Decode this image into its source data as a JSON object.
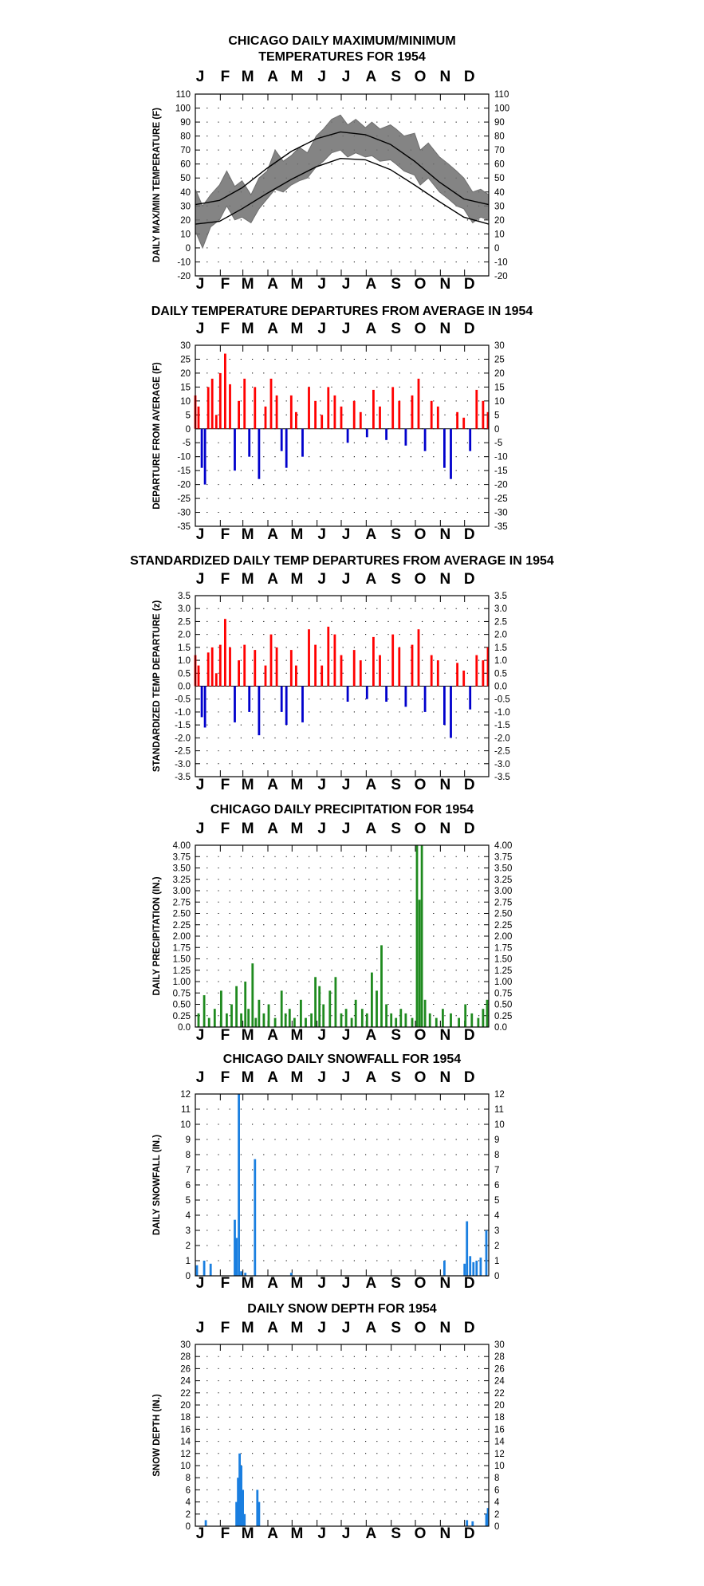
{
  "months": [
    "J",
    "F",
    "M",
    "A",
    "M",
    "J",
    "J",
    "A",
    "S",
    "O",
    "N",
    "D"
  ],
  "colors": {
    "max_series": "#6e6e6e",
    "normal_lines": "#000000",
    "positive": "#ff0000",
    "negative": "#0000cc",
    "precipitation": "#1f8a1f",
    "snow": "#1a7fe0"
  },
  "chart_data": [
    {
      "type": "line",
      "title": "CHICAGO DAILY MAXIMUM/MINIMUM\nTEMPERATURES FOR 1954",
      "ylabel": "DAILY MAX/MIN TEMPERATURE (F)",
      "ylim": [
        -20,
        110
      ],
      "yticks": [
        "110",
        "100",
        "90",
        "80",
        "70",
        "60",
        "50",
        "40",
        "30",
        "20",
        "10",
        "0",
        "-10",
        "-20"
      ],
      "grid": true,
      "x_day_range": [
        1,
        365
      ],
      "series": [
        {
          "role": "daily observed max/min band",
          "x": [
            1,
            10,
            20,
            31,
            40,
            50,
            59,
            70,
            80,
            90,
            100,
            110,
            120,
            130,
            140,
            151,
            160,
            170,
            181,
            190,
            200,
            212,
            220,
            230,
            243,
            250,
            260,
            273,
            280,
            290,
            304,
            315,
            325,
            334,
            345,
            355,
            365
          ],
          "high": [
            42,
            30,
            38,
            45,
            55,
            44,
            48,
            38,
            50,
            55,
            70,
            62,
            66,
            72,
            68,
            80,
            85,
            92,
            95,
            88,
            92,
            86,
            90,
            85,
            88,
            85,
            80,
            82,
            70,
            75,
            65,
            60,
            55,
            50,
            40,
            42,
            38
          ],
          "low": [
            12,
            0,
            15,
            20,
            30,
            20,
            22,
            18,
            28,
            35,
            42,
            40,
            45,
            48,
            50,
            58,
            62,
            68,
            70,
            65,
            68,
            65,
            66,
            62,
            63,
            60,
            55,
            52,
            45,
            50,
            40,
            35,
            30,
            28,
            18,
            22,
            20
          ]
        },
        {
          "role": "normal max",
          "x": [
            1,
            31,
            59,
            90,
            120,
            151,
            181,
            212,
            243,
            273,
            304,
            334,
            365
          ],
          "y": [
            31,
            34,
            43,
            57,
            69,
            78,
            83,
            81,
            74,
            62,
            47,
            35,
            31
          ]
        },
        {
          "role": "normal min",
          "x": [
            1,
            31,
            59,
            90,
            120,
            151,
            181,
            212,
            243,
            273,
            304,
            334,
            365
          ],
          "y": [
            17,
            19,
            28,
            39,
            49,
            58,
            64,
            63,
            56,
            45,
            33,
            22,
            17
          ]
        }
      ]
    },
    {
      "type": "bar",
      "title": "DAILY TEMPERATURE DEPARTURES FROM AVERAGE IN 1954",
      "ylabel": "DEPARTURE FROM AVERAGE (F)",
      "ylim": [
        -35,
        30
      ],
      "yticks": [
        "30",
        "25",
        "20",
        "15",
        "10",
        "5",
        "0",
        "-5",
        "-10",
        "-15",
        "-20",
        "-25",
        "-30",
        "-35"
      ],
      "grid": true,
      "x_day_range": [
        1,
        365
      ],
      "x": [
        1,
        5,
        9,
        13,
        17,
        22,
        27,
        32,
        38,
        44,
        50,
        55,
        62,
        68,
        75,
        80,
        88,
        95,
        102,
        108,
        114,
        120,
        126,
        134,
        142,
        150,
        158,
        166,
        174,
        182,
        190,
        198,
        206,
        214,
        222,
        230,
        238,
        246,
        254,
        262,
        270,
        278,
        286,
        294,
        302,
        310,
        318,
        326,
        334,
        342,
        350,
        358,
        364
      ],
      "values": [
        12,
        8,
        -14,
        -20,
        15,
        18,
        5,
        20,
        27,
        16,
        -15,
        10,
        18,
        -10,
        15,
        -18,
        8,
        18,
        12,
        -8,
        -14,
        12,
        6,
        -10,
        15,
        10,
        5,
        15,
        12,
        8,
        -5,
        10,
        6,
        -3,
        14,
        8,
        -4,
        15,
        10,
        -6,
        12,
        18,
        -8,
        10,
        8,
        -14,
        -18,
        6,
        4,
        -8,
        14,
        10,
        6
      ]
    },
    {
      "type": "bar",
      "title": "STANDARDIZED DAILY TEMP DEPARTURES FROM AVERAGE IN 1954",
      "ylabel": "STANDARDIZED TEMP DEPARTURE (z)",
      "ylim": [
        -3.5,
        3.5
      ],
      "yticks": [
        "3.5",
        "3.0",
        "2.5",
        "2.0",
        "1.5",
        "1.0",
        "0.5",
        "0.0",
        "-0.5",
        "-1.0",
        "-1.5",
        "-2.0",
        "-2.5",
        "-3.0",
        "-3.5"
      ],
      "grid": true,
      "x_day_range": [
        1,
        365
      ],
      "x": [
        1,
        5,
        9,
        13,
        17,
        22,
        27,
        32,
        38,
        44,
        50,
        55,
        62,
        68,
        75,
        80,
        88,
        95,
        102,
        108,
        114,
        120,
        126,
        134,
        142,
        150,
        158,
        166,
        174,
        182,
        190,
        198,
        206,
        214,
        222,
        230,
        238,
        246,
        254,
        262,
        270,
        278,
        286,
        294,
        302,
        310,
        318,
        326,
        334,
        342,
        350,
        358,
        364
      ],
      "values": [
        1.2,
        0.8,
        -1.2,
        -1.6,
        1.3,
        1.5,
        0.5,
        1.6,
        2.6,
        1.5,
        -1.4,
        1.0,
        1.6,
        -1.0,
        1.4,
        -1.9,
        0.8,
        2.0,
        1.5,
        -1.0,
        -1.5,
        1.4,
        0.8,
        -1.4,
        2.2,
        1.6,
        0.8,
        2.3,
        2.0,
        1.2,
        -0.6,
        1.4,
        1.0,
        -0.5,
        1.9,
        1.2,
        -0.6,
        2.0,
        1.5,
        -0.8,
        1.6,
        2.2,
        -1.0,
        1.2,
        1.0,
        -1.5,
        -2.0,
        0.9,
        0.6,
        -0.9,
        1.2,
        1.0,
        1.5
      ]
    },
    {
      "type": "bar",
      "title": "CHICAGO DAILY PRECIPITATION FOR 1954",
      "ylabel": "DAILY PRECIPITATION (IN.)",
      "ylim": [
        0,
        4.0
      ],
      "yticks": [
        "4.00",
        "3.75",
        "3.50",
        "3.25",
        "3.00",
        "2.75",
        "2.50",
        "2.25",
        "2.00",
        "1.75",
        "1.50",
        "1.25",
        "1.00",
        "0.75",
        "0.50",
        "0.25",
        "0.0"
      ],
      "grid": true,
      "x_day_range": [
        1,
        365
      ],
      "x": [
        5,
        12,
        18,
        25,
        33,
        40,
        46,
        52,
        58,
        63,
        67,
        72,
        76,
        80,
        86,
        92,
        100,
        108,
        113,
        118,
        124,
        132,
        138,
        145,
        150,
        155,
        160,
        168,
        175,
        182,
        188,
        195,
        200,
        208,
        214,
        220,
        226,
        232,
        238,
        244,
        250,
        256,
        262,
        270,
        276,
        279,
        282,
        286,
        292,
        300,
        308,
        318,
        328,
        336,
        344,
        352,
        358,
        363
      ],
      "values": [
        0.3,
        0.7,
        0.2,
        0.4,
        0.8,
        0.3,
        0.5,
        0.9,
        0.3,
        1.0,
        0.4,
        1.4,
        0.2,
        0.6,
        0.3,
        0.5,
        0.2,
        0.8,
        0.3,
        0.4,
        0.2,
        0.6,
        0.2,
        0.3,
        1.1,
        0.9,
        0.5,
        0.8,
        1.1,
        0.3,
        0.4,
        0.2,
        0.6,
        0.4,
        0.3,
        1.2,
        0.8,
        1.8,
        0.5,
        0.3,
        0.2,
        0.4,
        0.3,
        0.2,
        4.0,
        2.8,
        4.0,
        0.6,
        0.3,
        0.2,
        0.4,
        0.3,
        0.2,
        0.5,
        0.3,
        0.2,
        0.4,
        0.6
      ]
    },
    {
      "type": "bar",
      "title": "CHICAGO DAILY SNOWFALL FOR 1954",
      "ylabel": "DAILY SNOWFALL (IN.)",
      "ylim": [
        0,
        12
      ],
      "yticks": [
        "12",
        "11",
        "10",
        "9",
        "8",
        "7",
        "6",
        "5",
        "4",
        "3",
        "2",
        "1",
        "0"
      ],
      "grid": true,
      "x_day_range": [
        1,
        365
      ],
      "x": [
        3,
        12,
        20,
        50,
        52,
        55,
        58,
        63,
        75,
        120,
        310,
        335,
        338,
        342,
        346,
        350,
        355,
        362
      ],
      "values": [
        0.7,
        1.0,
        0.8,
        3.7,
        2.5,
        12.0,
        0.3,
        0.2,
        7.7,
        0.2,
        1.0,
        0.8,
        3.6,
        1.3,
        0.9,
        1.0,
        1.2,
        3.0
      ]
    },
    {
      "type": "bar",
      "title": "DAILY SNOW DEPTH FOR 1954",
      "ylabel": "SNOW DEPTH (IN.)",
      "ylim": [
        0,
        30
      ],
      "yticks": [
        "30",
        "28",
        "26",
        "24",
        "22",
        "20",
        "18",
        "16",
        "14",
        "12",
        "10",
        "8",
        "6",
        "4",
        "2",
        "0"
      ],
      "grid": true,
      "x_day_range": [
        1,
        365
      ],
      "x": [
        14,
        52,
        54,
        56,
        58,
        60,
        62,
        78,
        80,
        338,
        345,
        362,
        364
      ],
      "values": [
        1.0,
        4.0,
        8.0,
        12.0,
        10.0,
        6.0,
        2.0,
        6.0,
        4.0,
        1.0,
        0.8,
        2.0,
        3.0
      ]
    }
  ]
}
